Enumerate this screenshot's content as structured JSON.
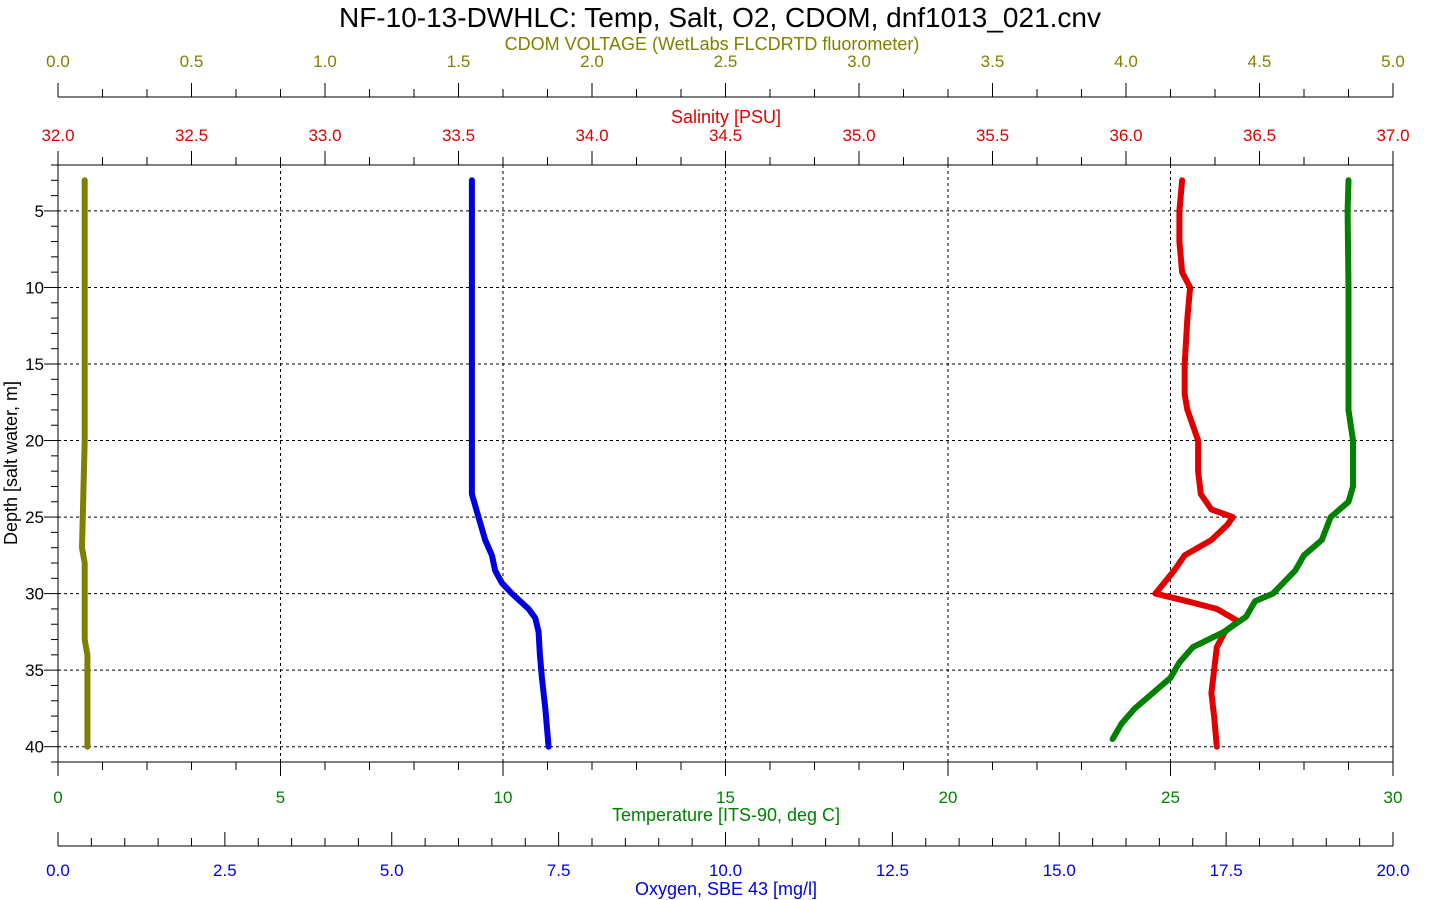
{
  "chart_data": {
    "type": "line",
    "title": "NF-10-13-DWHLC: Temp, Salt, O2, CDOM, dnf1013_021.cnv",
    "grid": true,
    "y_axis": {
      "label": "Depth [salt water, m]",
      "range": [
        2,
        41
      ],
      "inverted": true,
      "ticks": [
        "5",
        "10",
        "15",
        "20",
        "25",
        "30",
        "35",
        "40"
      ],
      "tick_values": [
        5,
        10,
        15,
        20,
        25,
        30,
        35,
        40
      ]
    },
    "x_axes": {
      "cdom": {
        "label": "CDOM VOLTAGE (WetLabs FLCDRTD fluorometer)",
        "range": [
          0,
          5
        ],
        "color": "#808000",
        "ticks": [
          "0.0",
          "0.5",
          "1.0",
          "1.5",
          "2.0",
          "2.5",
          "3.0",
          "3.5",
          "4.0",
          "4.5",
          "5.0"
        ]
      },
      "salinity": {
        "label": "Salinity [PSU]",
        "range": [
          32,
          37
        ],
        "color": "#e00000",
        "ticks": [
          "32.0",
          "32.5",
          "33.0",
          "33.5",
          "34.0",
          "34.5",
          "35.0",
          "35.5",
          "36.0",
          "36.5",
          "37.0"
        ]
      },
      "temperature": {
        "label": "Temperature [ITS-90, deg C]",
        "range": [
          0,
          30
        ],
        "color": "#008000",
        "ticks": [
          "0",
          "5",
          "10",
          "15",
          "20",
          "25",
          "30"
        ]
      },
      "oxygen": {
        "label": "Oxygen, SBE 43 [mg/l]",
        "range": [
          0,
          20
        ],
        "color": "#0000e0",
        "ticks": [
          "0.0",
          "2.5",
          "5.0",
          "7.5",
          "10.0",
          "12.5",
          "15.0",
          "17.5",
          "20.0"
        ]
      }
    },
    "series": [
      {
        "axis": "cdom",
        "color": "#808000",
        "points": [
          [
            0.1,
            3
          ],
          [
            0.1,
            10
          ],
          [
            0.1,
            20
          ],
          [
            0.09,
            27
          ],
          [
            0.1,
            28
          ],
          [
            0.1,
            33
          ],
          [
            0.11,
            34
          ],
          [
            0.11,
            36
          ],
          [
            0.11,
            40
          ]
        ]
      },
      {
        "axis": "oxygen",
        "color": "#0000e0",
        "points": [
          [
            6.2,
            3
          ],
          [
            6.2,
            10
          ],
          [
            6.2,
            20
          ],
          [
            6.2,
            23.5
          ],
          [
            6.3,
            25
          ],
          [
            6.4,
            26.5
          ],
          [
            6.5,
            27.5
          ],
          [
            6.55,
            28.5
          ],
          [
            6.65,
            29.3
          ],
          [
            6.8,
            30
          ],
          [
            7.05,
            31
          ],
          [
            7.15,
            31.6
          ],
          [
            7.2,
            32.5
          ],
          [
            7.22,
            34
          ],
          [
            7.25,
            35.5
          ],
          [
            7.3,
            37.5
          ],
          [
            7.35,
            40
          ]
        ]
      },
      {
        "axis": "salinity",
        "color": "#e00000",
        "points": [
          [
            36.21,
            3
          ],
          [
            36.2,
            5
          ],
          [
            36.2,
            7
          ],
          [
            36.21,
            9
          ],
          [
            36.24,
            10
          ],
          [
            36.23,
            12
          ],
          [
            36.22,
            15
          ],
          [
            36.22,
            17
          ],
          [
            36.23,
            18
          ],
          [
            36.25,
            19
          ],
          [
            36.27,
            20
          ],
          [
            36.27,
            22
          ],
          [
            36.28,
            23.5
          ],
          [
            36.32,
            24.5
          ],
          [
            36.4,
            25
          ],
          [
            36.38,
            25.5
          ],
          [
            36.32,
            26.5
          ],
          [
            36.22,
            27.5
          ],
          [
            36.18,
            28.5
          ],
          [
            36.11,
            30
          ],
          [
            36.23,
            30.5
          ],
          [
            36.34,
            31
          ],
          [
            36.42,
            31.8
          ],
          [
            36.37,
            32.5
          ],
          [
            36.34,
            33.5
          ],
          [
            36.33,
            35
          ],
          [
            36.32,
            36.5
          ],
          [
            36.33,
            38
          ],
          [
            36.34,
            40
          ]
        ]
      },
      {
        "axis": "temperature",
        "color": "#008000",
        "points": [
          [
            29.0,
            3
          ],
          [
            28.98,
            5
          ],
          [
            29.0,
            10
          ],
          [
            29.0,
            15
          ],
          [
            29.0,
            18
          ],
          [
            29.1,
            20
          ],
          [
            29.1,
            23
          ],
          [
            29.0,
            24
          ],
          [
            28.6,
            25
          ],
          [
            28.4,
            26.5
          ],
          [
            28.0,
            27.5
          ],
          [
            27.8,
            28.5
          ],
          [
            27.3,
            30
          ],
          [
            26.9,
            30.5
          ],
          [
            26.7,
            31.5
          ],
          [
            26.2,
            32.5
          ],
          [
            25.5,
            33.5
          ],
          [
            25.2,
            34.5
          ],
          [
            25.0,
            35.5
          ],
          [
            24.6,
            36.5
          ],
          [
            24.2,
            37.5
          ],
          [
            23.9,
            38.5
          ],
          [
            23.7,
            39.5
          ]
        ]
      }
    ]
  }
}
